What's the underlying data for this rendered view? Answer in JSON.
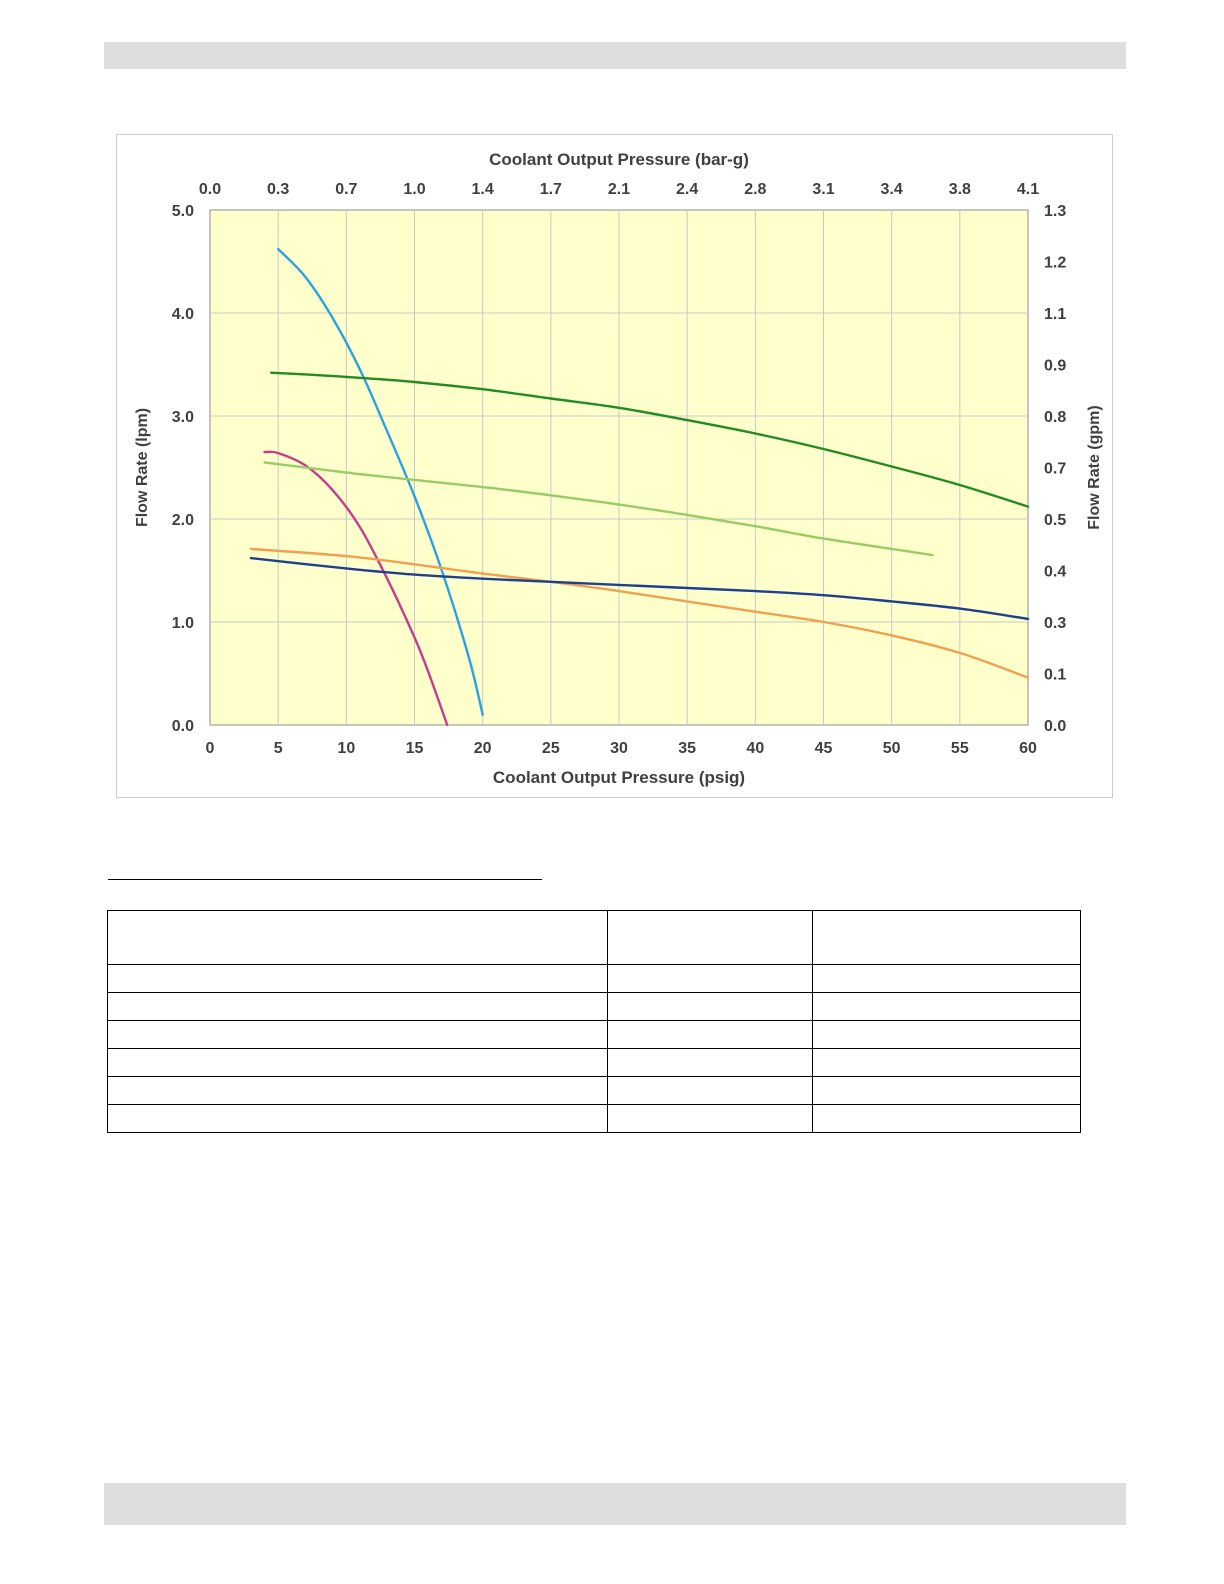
{
  "chart_data": {
    "type": "line",
    "title": "",
    "xlabel": "Coolant Output Pressure (psig)",
    "x2label": "Coolant Output Pressure (bar-g)",
    "ylabel": "Flow Rate (lpm)",
    "y2label": "Flow Rate (gpm)",
    "xlim": [
      0,
      60
    ],
    "ylim": [
      0,
      5
    ],
    "x_ticks": [
      "0",
      "5",
      "10",
      "15",
      "20",
      "25",
      "30",
      "35",
      "40",
      "45",
      "50",
      "55",
      "60"
    ],
    "x2_ticks": [
      "0.0",
      "0.3",
      "0.7",
      "1.0",
      "1.4",
      "1.7",
      "2.1",
      "2.4",
      "2.8",
      "3.1",
      "3.4",
      "3.8",
      "4.1"
    ],
    "y_ticks": [
      "0.0",
      "1.0",
      "2.0",
      "3.0",
      "4.0",
      "5.0"
    ],
    "y2_ticks": [
      "0.0",
      "0.1",
      "0.3",
      "0.4",
      "0.5",
      "0.7",
      "0.8",
      "0.9",
      "1.1",
      "1.2",
      "1.3"
    ],
    "grid": true,
    "background": "#ffffcc",
    "series": [
      {
        "color": "#29a3e0",
        "x": [
          5,
          7,
          9,
          11,
          13,
          15,
          17,
          19,
          20
        ],
        "y": [
          4.62,
          4.35,
          3.95,
          3.45,
          2.85,
          2.22,
          1.5,
          0.65,
          0.1
        ]
      },
      {
        "color": "#c83c8c",
        "x": [
          4,
          5,
          7,
          9,
          11,
          13,
          15,
          16,
          17,
          17.4
        ],
        "y": [
          2.65,
          2.64,
          2.52,
          2.28,
          1.92,
          1.42,
          0.85,
          0.52,
          0.15,
          0.0
        ]
      },
      {
        "color": "#228b22",
        "x": [
          4.5,
          10,
          15,
          20,
          25,
          30,
          35,
          40,
          45,
          50,
          55,
          60
        ],
        "y": [
          3.42,
          3.38,
          3.33,
          3.26,
          3.17,
          3.08,
          2.96,
          2.83,
          2.68,
          2.51,
          2.33,
          2.12
        ]
      },
      {
        "color": "#99cc66",
        "x": [
          4,
          10,
          15,
          20,
          25,
          30,
          35,
          40,
          45,
          50,
          53
        ],
        "y": [
          2.55,
          2.45,
          2.38,
          2.31,
          2.23,
          2.14,
          2.04,
          1.93,
          1.81,
          1.71,
          1.65
        ]
      },
      {
        "color": "#f0a050",
        "x": [
          3,
          10,
          15,
          20,
          25,
          30,
          35,
          40,
          45,
          50,
          55,
          60
        ],
        "y": [
          1.71,
          1.64,
          1.56,
          1.47,
          1.39,
          1.3,
          1.2,
          1.1,
          1.0,
          0.87,
          0.7,
          0.46
        ]
      },
      {
        "color": "#1f3f8f",
        "x": [
          3,
          10,
          15,
          20,
          25,
          30,
          35,
          40,
          45,
          50,
          55,
          60
        ],
        "y": [
          1.62,
          1.52,
          1.46,
          1.42,
          1.39,
          1.36,
          1.33,
          1.3,
          1.26,
          1.2,
          1.13,
          1.03
        ]
      }
    ]
  },
  "table": {
    "rows": [
      [
        "",
        "",
        ""
      ],
      [
        "",
        "",
        ""
      ],
      [
        "",
        "",
        ""
      ],
      [
        "",
        "",
        ""
      ],
      [
        "",
        "",
        ""
      ],
      [
        "",
        "",
        ""
      ],
      [
        "",
        "",
        ""
      ]
    ]
  }
}
